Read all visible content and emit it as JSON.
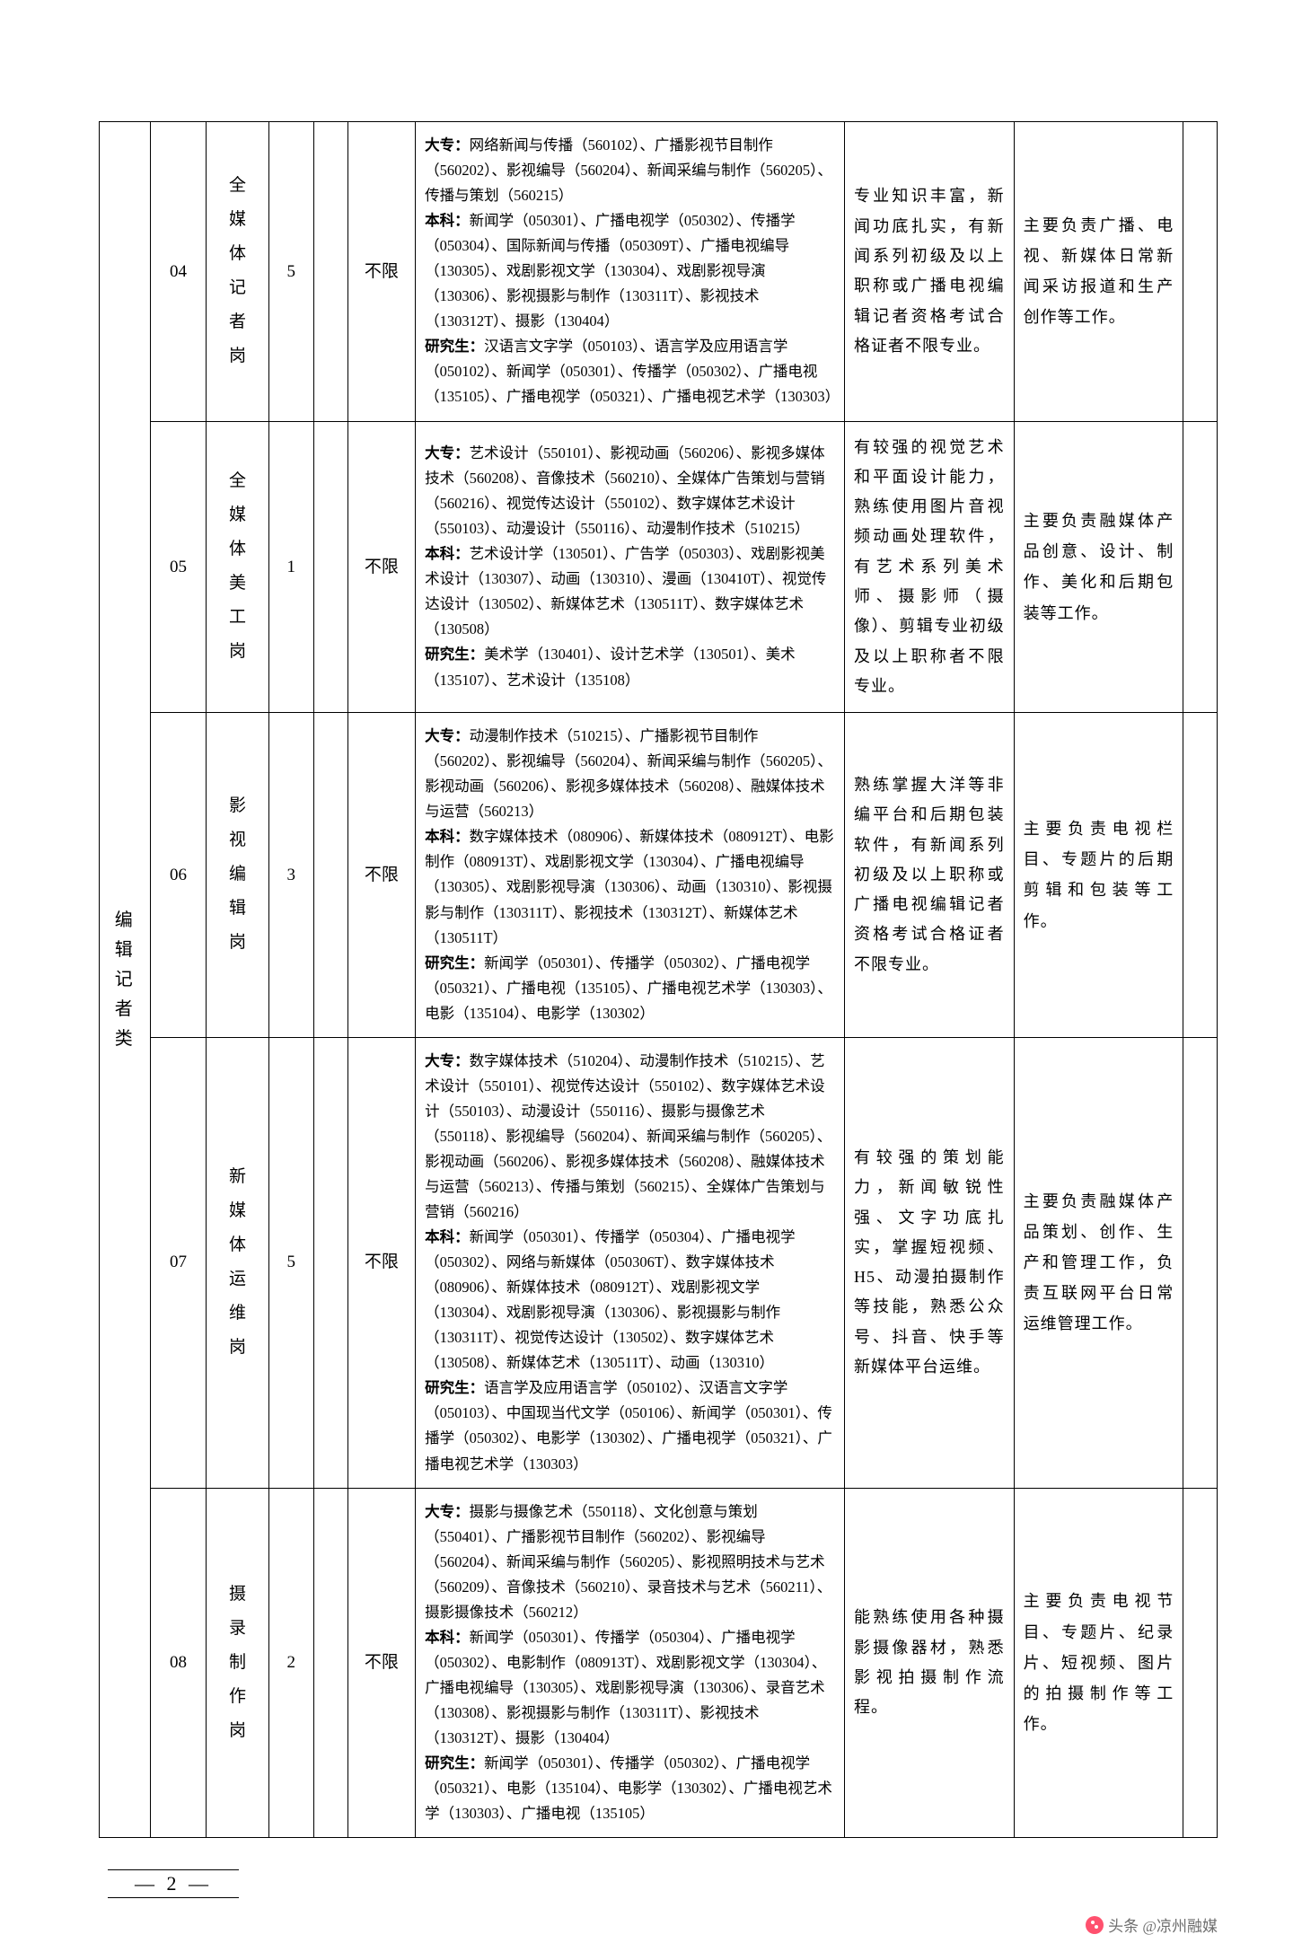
{
  "category": "编辑记者类",
  "rows": [
    {
      "code": "04",
      "position": "全媒体记者岗",
      "count": "5",
      "gender": "不限",
      "spec_dz_label": "大专：",
      "spec_dz": "网络新闻与传播（560102）、广播影视节目制作（560202）、影视编导（560204）、新闻采编与制作（560205）、传播与策划（560215）",
      "spec_bk_label": "本科：",
      "spec_bk": "新闻学（050301）、广播电视学（050302）、传播学（050304）、国际新闻与传播（050309T）、广播电视编导（130305）、戏剧影视文学（130304）、戏剧影视导演（130306）、影视摄影与制作（130311T）、影视技术（130312T）、摄影（130404）",
      "spec_yj_label": "研究生：",
      "spec_yj": "汉语言文字学（050103）、语言学及应用语言学（050102）、新闻学（050301）、传播学（050302）、广播电视（135105）、广播电视学（050321）、广播电视艺术学（130303）",
      "cond": "专业知识丰富，新闻功底扎实，有新闻系列初级及以上职称或广播电视编辑记者资格考试合格证者不限专业。",
      "resp": "主要负责广播、电视、新媒体日常新闻采访报道和生产创作等工作。"
    },
    {
      "code": "05",
      "position": "全媒体美工岗",
      "count": "1",
      "gender": "不限",
      "spec_dz_label": "大专：",
      "spec_dz": "艺术设计（550101）、影视动画（560206）、影视多媒体技术（560208）、音像技术（560210）、全媒体广告策划与营销（560216）、视觉传达设计（550102）、数字媒体艺术设计（550103）、动漫设计（550116）、动漫制作技术（510215）",
      "spec_bk_label": "本科：",
      "spec_bk": "艺术设计学（130501）、广告学（050303）、戏剧影视美术设计（130307）、动画（130310）、漫画（130410T）、视觉传达设计（130502）、新媒体艺术（130511T）、数字媒体艺术（130508）",
      "spec_yj_label": "研究生：",
      "spec_yj": "美术学（130401）、设计艺术学（130501）、美术（135107）、艺术设计（135108）",
      "cond": "有较强的视觉艺术和平面设计能力，熟练使用图片音视频动画处理软件，有艺术系列美术师、摄影师（摄像）、剪辑专业初级及以上职称者不限专业。",
      "resp": "主要负责融媒体产品创意、设计、制作、美化和后期包装等工作。"
    },
    {
      "code": "06",
      "position": "影视编辑岗",
      "count": "3",
      "gender": "不限",
      "spec_dz_label": "大专：",
      "spec_dz": "动漫制作技术（510215）、广播影视节目制作（560202）、影视编导（560204）、新闻采编与制作（560205）、影视动画（560206）、影视多媒体技术（560208）、融媒体技术与运营（560213）",
      "spec_bk_label": "本科：",
      "spec_bk": "数字媒体技术（080906）、新媒体技术（080912T）、电影制作（080913T）、戏剧影视文学（130304）、广播电视编导（130305）、戏剧影视导演（130306）、动画（130310）、影视摄影与制作（130311T）、影视技术（130312T）、新媒体艺术（130511T）",
      "spec_yj_label": "研究生：",
      "spec_yj": "新闻学（050301）、传播学（050302）、广播电视学（050321）、广播电视（135105）、广播电视艺术学（130303）、电影（135104）、电影学（130302）",
      "cond": "熟练掌握大洋等非编平台和后期包装软件，有新闻系列初级及以上职称或广播电视编辑记者资格考试合格证者不限专业。",
      "resp": "主要负责电视栏目、专题片的后期剪辑和包装等工作。"
    },
    {
      "code": "07",
      "position": "新媒体运维岗",
      "count": "5",
      "gender": "不限",
      "spec_dz_label": "大专：",
      "spec_dz": "数字媒体技术（510204）、动漫制作技术（510215）、艺术设计（550101）、视觉传达设计（550102）、数字媒体艺术设计（550103）、动漫设计（550116）、摄影与摄像艺术（550118）、影视编导（560204）、新闻采编与制作（560205）、影视动画（560206）、影视多媒体技术（560208）、融媒体技术与运营（560213）、传播与策划（560215）、全媒体广告策划与营销（560216）",
      "spec_bk_label": "本科：",
      "spec_bk": "新闻学（050301）、传播学（050304）、广播电视学（050302）、网络与新媒体（050306T）、数字媒体技术（080906）、新媒体技术（080912T）、戏剧影视文学（130304）、戏剧影视导演（130306）、影视摄影与制作（130311T）、视觉传达设计（130502）、数字媒体艺术（130508）、新媒体艺术（130511T）、动画（130310）",
      "spec_yj_label": "研究生：",
      "spec_yj": "语言学及应用语言学（050102）、汉语言文字学（050103）、中国现当代文学（050106）、新闻学（050301）、传播学（050302）、电影学（130302）、广播电视学（050321）、广播电视艺术学（130303）",
      "cond": "有较强的策划能力，新闻敏锐性强、文字功底扎实，掌握短视频、H5、动漫拍摄制作等技能，熟悉公众号、抖音、快手等新媒体平台运维。",
      "resp": "主要负责融媒体产品策划、创作、生产和管理工作，负责互联网平台日常运维管理工作。"
    },
    {
      "code": "08",
      "position": "摄录制作岗",
      "count": "2",
      "gender": "不限",
      "spec_dz_label": "大专：",
      "spec_dz": "摄影与摄像艺术（550118）、文化创意与策划（550401）、广播影视节目制作（560202）、影视编导（560204）、新闻采编与制作（560205）、影视照明技术与艺术（560209）、音像技术（560210）、录音技术与艺术（560211）、摄影摄像技术（560212）",
      "spec_bk_label": "本科：",
      "spec_bk": "新闻学（050301）、传播学（050304）、广播电视学（050302）、电影制作（080913T）、戏剧影视文学（130304）、广播电视编导（130305）、戏剧影视导演（130306）、录音艺术（130308）、影视摄影与制作（130311T）、影视技术（130312T）、摄影（130404）",
      "spec_yj_label": "研究生：",
      "spec_yj": "新闻学（050301）、传播学（050302）、广播电视学（050321）、电影（135104）、电影学（130302）、广播电视艺术学（130303）、广播电视（135105）",
      "cond": "能熟练使用各种摄影摄像器材，熟悉影视拍摄制作流程。",
      "resp": "主要负责电视节目、专题片、纪录片、短视频、图片的拍摄制作等工作。"
    }
  ],
  "page_number": "— 2 —",
  "watermark": "头条 @凉州融媒"
}
